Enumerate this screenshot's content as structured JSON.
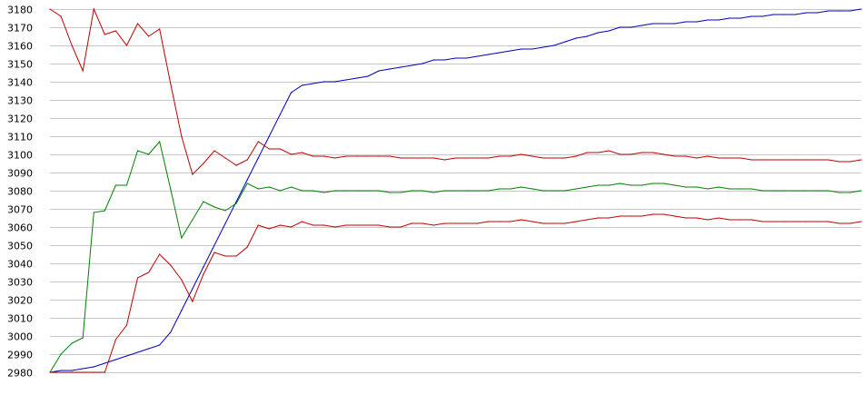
{
  "chart_data": {
    "type": "line",
    "title": "",
    "xlabel": "",
    "ylabel": "",
    "ylim": [
      2980,
      3180
    ],
    "yticks": [
      2980,
      2990,
      3000,
      3010,
      3020,
      3030,
      3040,
      3050,
      3060,
      3070,
      3080,
      3090,
      3100,
      3110,
      3120,
      3130,
      3140,
      3150,
      3160,
      3170,
      3180
    ],
    "xlim": [
      0,
      74
    ],
    "grid": "horizontal",
    "legend": "none",
    "series": [
      {
        "color": "#0000c0",
        "x": [
          0,
          1,
          2,
          3,
          4,
          5,
          6,
          7,
          8,
          9,
          10,
          11,
          12,
          13,
          14,
          15,
          16,
          17,
          18,
          19,
          20,
          21,
          22,
          23,
          24,
          25,
          26,
          27,
          28,
          29,
          30,
          31,
          32,
          33,
          34,
          35,
          36,
          37,
          38,
          39,
          40,
          41,
          42,
          43,
          44,
          45,
          46,
          47,
          48,
          49,
          50,
          51,
          52,
          53,
          54,
          55,
          56,
          57,
          58,
          59,
          60,
          61,
          62,
          63,
          64,
          65,
          66,
          67,
          68,
          69,
          70,
          71,
          72,
          73,
          74
        ],
        "values": [
          2980,
          2981,
          2981,
          2982,
          2983,
          2985,
          2987,
          2989,
          2991,
          2993,
          2995,
          3002,
          3014,
          3026,
          3038,
          3050,
          3062,
          3074,
          3086,
          3098,
          3110,
          3122,
          3134,
          3138,
          3139,
          3140,
          3140,
          3141,
          3142,
          3143,
          3146,
          3147,
          3148,
          3149,
          3150,
          3152,
          3152,
          3153,
          3153,
          3154,
          3155,
          3156,
          3157,
          3158,
          3158,
          3159,
          3160,
          3162,
          3164,
          3165,
          3167,
          3168,
          3170,
          3170,
          3171,
          3172,
          3172,
          3172,
          3173,
          3173,
          3174,
          3174,
          3175,
          3175,
          3176,
          3176,
          3177,
          3177,
          3177,
          3178,
          3178,
          3179,
          3179,
          3179,
          3180
        ]
      },
      {
        "color": "#c00000",
        "x": [
          0,
          1,
          2,
          3,
          4,
          5,
          6,
          7,
          8,
          9,
          10,
          11,
          12,
          13,
          14,
          15,
          16,
          17,
          18,
          19,
          20,
          21,
          22,
          23,
          24,
          25,
          26,
          27,
          28,
          29,
          30,
          31,
          32,
          33,
          34,
          35,
          36,
          37,
          38,
          39,
          40,
          41,
          42,
          43,
          44,
          45,
          46,
          47,
          48,
          49,
          50,
          51,
          52,
          53,
          54,
          55,
          56,
          57,
          58,
          59,
          60,
          61,
          62,
          63,
          64,
          65,
          66,
          67,
          68,
          69,
          70,
          71,
          72,
          73,
          74
        ],
        "values": [
          3180,
          3176,
          3160,
          3146,
          3180,
          3166,
          3168,
          3160,
          3172,
          3165,
          3169,
          3139,
          3110,
          3089,
          3095,
          3102,
          3098,
          3094,
          3097,
          3107,
          3103,
          3103,
          3100,
          3101,
          3099,
          3099,
          3098,
          3099,
          3099,
          3099,
          3099,
          3099,
          3098,
          3098,
          3098,
          3098,
          3097,
          3098,
          3098,
          3098,
          3098,
          3099,
          3099,
          3100,
          3099,
          3098,
          3098,
          3098,
          3099,
          3101,
          3101,
          3102,
          3100,
          3100,
          3101,
          3101,
          3100,
          3099,
          3099,
          3098,
          3099,
          3098,
          3098,
          3098,
          3097,
          3097,
          3097,
          3097,
          3097,
          3097,
          3097,
          3097,
          3096,
          3096,
          3097
        ]
      },
      {
        "color": "#008000",
        "x": [
          0,
          1,
          2,
          3,
          4,
          5,
          6,
          7,
          8,
          9,
          10,
          11,
          12,
          13,
          14,
          15,
          16,
          17,
          18,
          19,
          20,
          21,
          22,
          23,
          24,
          25,
          26,
          27,
          28,
          29,
          30,
          31,
          32,
          33,
          34,
          35,
          36,
          37,
          38,
          39,
          40,
          41,
          42,
          43,
          44,
          45,
          46,
          47,
          48,
          49,
          50,
          51,
          52,
          53,
          54,
          55,
          56,
          57,
          58,
          59,
          60,
          61,
          62,
          63,
          64,
          65,
          66,
          67,
          68,
          69,
          70,
          71,
          72,
          73,
          74
        ],
        "values": [
          2980,
          2990,
          2996,
          2999,
          3068,
          3069,
          3083,
          3083,
          3102,
          3100,
          3107,
          3081,
          3054,
          3064,
          3074,
          3071,
          3069,
          3073,
          3084,
          3081,
          3082,
          3080,
          3082,
          3080,
          3080,
          3079,
          3080,
          3080,
          3080,
          3080,
          3080,
          3079,
          3079,
          3080,
          3080,
          3079,
          3080,
          3080,
          3080,
          3080,
          3080,
          3081,
          3081,
          3082,
          3081,
          3080,
          3080,
          3080,
          3081,
          3082,
          3083,
          3083,
          3084,
          3083,
          3083,
          3084,
          3084,
          3083,
          3082,
          3082,
          3081,
          3082,
          3081,
          3081,
          3081,
          3080,
          3080,
          3080,
          3080,
          3080,
          3080,
          3080,
          3079,
          3079,
          3080
        ]
      },
      {
        "color": "#c00000",
        "x": [
          0,
          1,
          2,
          3,
          4,
          5,
          6,
          7,
          8,
          9,
          10,
          11,
          12,
          13,
          14,
          15,
          16,
          17,
          18,
          19,
          20,
          21,
          22,
          23,
          24,
          25,
          26,
          27,
          28,
          29,
          30,
          31,
          32,
          33,
          34,
          35,
          36,
          37,
          38,
          39,
          40,
          41,
          42,
          43,
          44,
          45,
          46,
          47,
          48,
          49,
          50,
          51,
          52,
          53,
          54,
          55,
          56,
          57,
          58,
          59,
          60,
          61,
          62,
          63,
          64,
          65,
          66,
          67,
          68,
          69,
          70,
          71,
          72,
          73,
          74
        ],
        "values": [
          2980,
          2980,
          2980,
          2980,
          2980,
          2980,
          2998,
          3006,
          3032,
          3035,
          3045,
          3039,
          3031,
          3019,
          3034,
          3046,
          3044,
          3044,
          3049,
          3061,
          3059,
          3061,
          3060,
          3063,
          3061,
          3061,
          3060,
          3061,
          3061,
          3061,
          3061,
          3060,
          3060,
          3062,
          3062,
          3061,
          3062,
          3062,
          3062,
          3062,
          3063,
          3063,
          3063,
          3064,
          3063,
          3062,
          3062,
          3062,
          3063,
          3064,
          3065,
          3065,
          3066,
          3066,
          3066,
          3067,
          3067,
          3066,
          3065,
          3065,
          3064,
          3065,
          3064,
          3064,
          3064,
          3063,
          3063,
          3063,
          3063,
          3063,
          3063,
          3063,
          3062,
          3062,
          3063
        ]
      }
    ]
  }
}
